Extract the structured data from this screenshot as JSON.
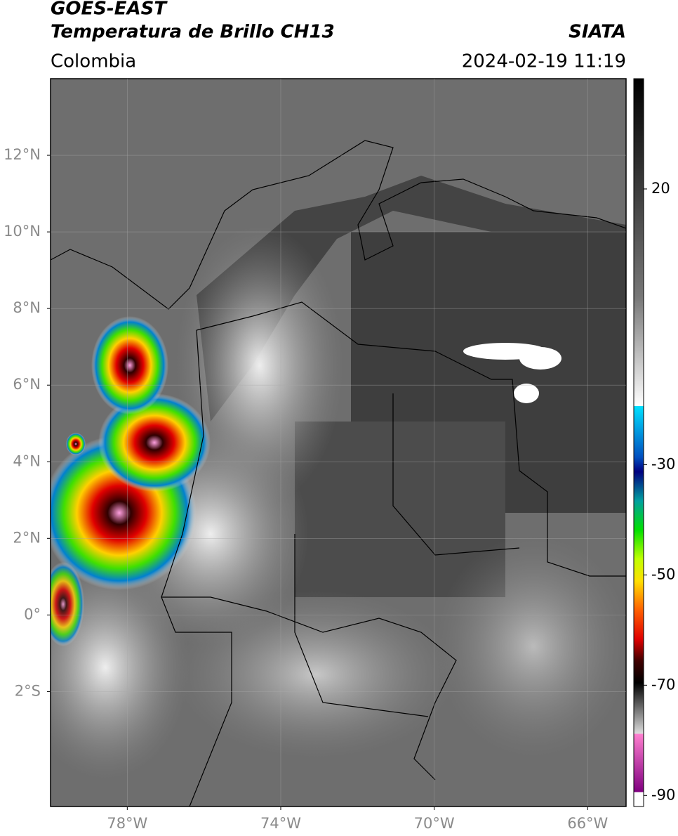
{
  "chart_data": {
    "type": "map",
    "title": "GOES-EAST",
    "subtitle": "Temperatura de Brillo CH13",
    "source": "SIATA",
    "region": "Colombia",
    "datetime": "2024-02-19 11:19",
    "xlim": [
      -80,
      -65
    ],
    "ylim": [
      -5,
      14
    ],
    "xticks": [
      {
        "value": -78,
        "label": "78°W"
      },
      {
        "value": -74,
        "label": "74°W"
      },
      {
        "value": -70,
        "label": "70°W"
      },
      {
        "value": -66,
        "label": "66°W"
      }
    ],
    "yticks": [
      {
        "value": 12,
        "label": "12°N"
      },
      {
        "value": 10,
        "label": "10°N"
      },
      {
        "value": 8,
        "label": "8°N"
      },
      {
        "value": 6,
        "label": "6°N"
      },
      {
        "value": 4,
        "label": "4°N"
      },
      {
        "value": 2,
        "label": "2°N"
      },
      {
        "value": 0,
        "label": "0°"
      },
      {
        "value": -2,
        "label": "2°S"
      }
    ],
    "grid": true,
    "colorbar": {
      "lim": [
        -92,
        40
      ],
      "ticks": [
        20,
        -30,
        -50,
        -70,
        -90
      ]
    }
  }
}
